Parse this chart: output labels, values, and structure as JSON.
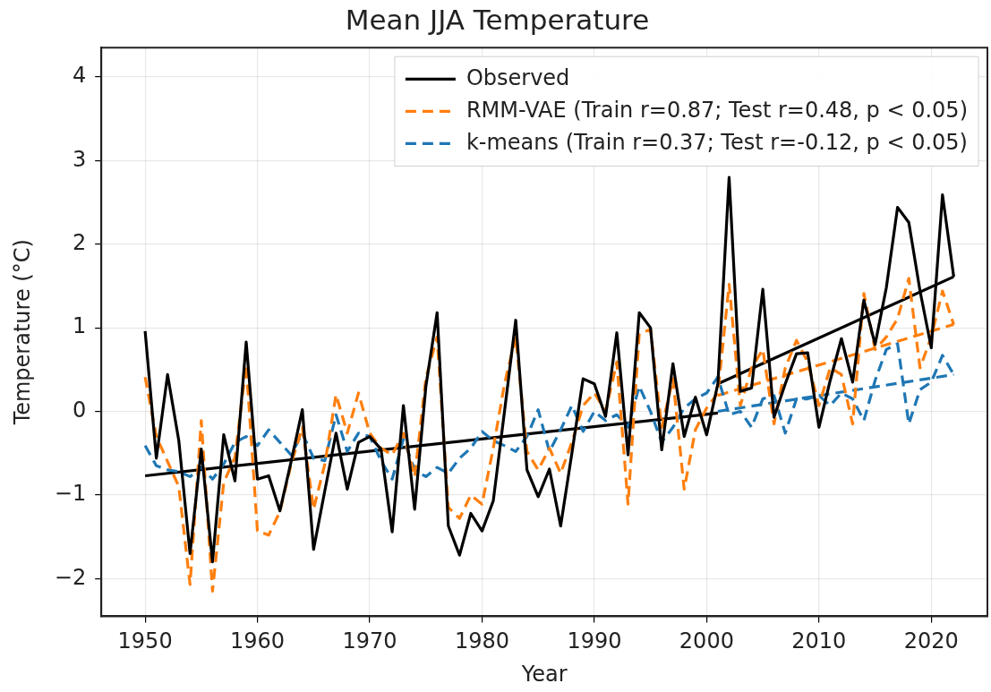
{
  "chart_data": {
    "type": "line",
    "title": "Mean JJA Temperature",
    "xlabel": "Year",
    "ylabel": "Temperature (°C)",
    "x": [
      1950,
      1951,
      1952,
      1953,
      1954,
      1955,
      1956,
      1957,
      1958,
      1959,
      1960,
      1961,
      1962,
      1963,
      1964,
      1965,
      1966,
      1967,
      1968,
      1969,
      1970,
      1971,
      1972,
      1973,
      1974,
      1975,
      1976,
      1977,
      1978,
      1979,
      1980,
      1981,
      1982,
      1983,
      1984,
      1985,
      1986,
      1987,
      1988,
      1989,
      1990,
      1991,
      1992,
      1993,
      1994,
      1995,
      1996,
      1997,
      1998,
      1999,
      2000,
      2001,
      2002,
      2003,
      2004,
      2005,
      2006,
      2007,
      2008,
      2009,
      2010,
      2011,
      2012,
      2013,
      2014,
      2015,
      2016,
      2017,
      2018,
      2019,
      2020,
      2021,
      2022
    ],
    "series": [
      {
        "name": "Observed",
        "color": "#000000",
        "line_style": "solid",
        "values": [
          0.96,
          -0.56,
          0.44,
          -0.35,
          -1.7,
          -0.45,
          -1.8,
          -0.28,
          -0.83,
          0.83,
          -0.81,
          -0.77,
          -1.19,
          -0.6,
          0.02,
          -1.65,
          -0.95,
          -0.26,
          -0.93,
          -0.37,
          -0.3,
          -0.45,
          -1.44,
          0.07,
          -1.17,
          0.3,
          1.18,
          -1.37,
          -1.72,
          -1.22,
          -1.43,
          -1.07,
          0.0,
          1.09,
          -0.7,
          -1.02,
          -0.69,
          -1.37,
          -0.5,
          0.39,
          0.33,
          -0.06,
          0.94,
          -0.52,
          1.18,
          1.0,
          -0.46,
          0.57,
          -0.3,
          0.17,
          -0.28,
          0.33,
          2.8,
          0.24,
          0.28,
          1.46,
          -0.07,
          0.33,
          0.69,
          0.7,
          -0.19,
          0.37,
          0.87,
          0.35,
          1.33,
          0.8,
          1.48,
          2.44,
          2.26,
          1.44,
          0.76,
          2.59,
          1.61
        ]
      },
      {
        "name": "RMM-VAE (Train r=0.87; Test r=0.48, p < 0.05)",
        "color": "#ff7f0e",
        "line_style": "dashed",
        "values": [
          0.41,
          -0.3,
          -0.6,
          -0.9,
          -2.07,
          -0.11,
          -2.15,
          -0.85,
          -0.55,
          0.56,
          -1.43,
          -1.48,
          -1.2,
          -0.63,
          -0.19,
          -1.17,
          -0.63,
          0.2,
          -0.26,
          0.22,
          -0.26,
          -0.44,
          -0.52,
          -0.26,
          -0.78,
          0.4,
          0.89,
          -1.15,
          -1.28,
          -1.0,
          -1.11,
          -0.44,
          0.33,
          0.89,
          -0.48,
          -0.7,
          -0.44,
          -0.74,
          -0.37,
          0.07,
          0.22,
          0.0,
          0.59,
          -1.11,
          0.93,
          0.98,
          -0.19,
          0.39,
          -0.93,
          -0.22,
          0.04,
          0.22,
          1.52,
          0.07,
          0.52,
          0.74,
          -0.15,
          0.52,
          0.85,
          0.59,
          0.07,
          0.52,
          0.44,
          -0.15,
          1.41,
          0.74,
          0.89,
          1.11,
          1.59,
          0.52,
          0.89,
          1.44,
          1.04
        ]
      },
      {
        "name": "k-means (Train r=0.37; Test r=-0.12, p < 0.05)",
        "color": "#1f77b4",
        "line_style": "dashed",
        "values": [
          -0.41,
          -0.65,
          -0.7,
          -0.72,
          -0.78,
          -0.67,
          -0.81,
          -0.63,
          -0.37,
          -0.3,
          -0.41,
          -0.22,
          -0.37,
          -0.52,
          -0.26,
          -0.56,
          -0.59,
          -0.04,
          -0.48,
          -0.26,
          -0.3,
          -0.59,
          -0.81,
          -0.33,
          -0.7,
          -0.78,
          -0.67,
          -0.74,
          -0.56,
          -0.44,
          -0.24,
          -0.35,
          -0.41,
          -0.48,
          -0.3,
          0.02,
          -0.48,
          -0.22,
          0.07,
          -0.24,
          0,
          -0.11,
          -0.04,
          -0.19,
          0.3,
          0,
          -0.37,
          -0.19,
          0.04,
          0.15,
          0.22,
          0.41,
          -0.04,
          0,
          -0.19,
          0.15,
          0.19,
          -0.26,
          0.15,
          0.15,
          0.19,
          0.07,
          0.22,
          0.15,
          -0.11,
          0.37,
          0.74,
          0.81,
          -0.15,
          0.26,
          0.35,
          0.67,
          0.44
        ]
      },
      {
        "type": "line",
        "color": "#000000",
        "line_style": "solid",
        "x": [
          1950,
          2001
        ],
        "values": [
          -0.77,
          -0.02
        ]
      },
      {
        "type": "line",
        "color": "#000000",
        "line_style": "solid",
        "x": [
          2001,
          2022
        ],
        "values": [
          0.33,
          1.61
        ]
      },
      {
        "type": "line",
        "color": "#ff7f0e",
        "line_style": "dashed",
        "x": [
          2001,
          2022
        ],
        "values": [
          0.19,
          1.04
        ]
      },
      {
        "type": "line",
        "color": "#1f77b4",
        "line_style": "dashed",
        "x": [
          2001,
          2022
        ],
        "values": [
          0.0,
          0.44
        ]
      }
    ],
    "xlim": [
      1946.1,
      2025
    ],
    "xticks": [
      1950,
      1960,
      1970,
      1980,
      1990,
      2000,
      2010,
      2020
    ],
    "ylim": [
      -2.45,
      4.35
    ],
    "yticks": [
      -2,
      -1,
      0,
      1,
      2,
      3,
      4
    ],
    "grid": true,
    "legend": "top right"
  }
}
